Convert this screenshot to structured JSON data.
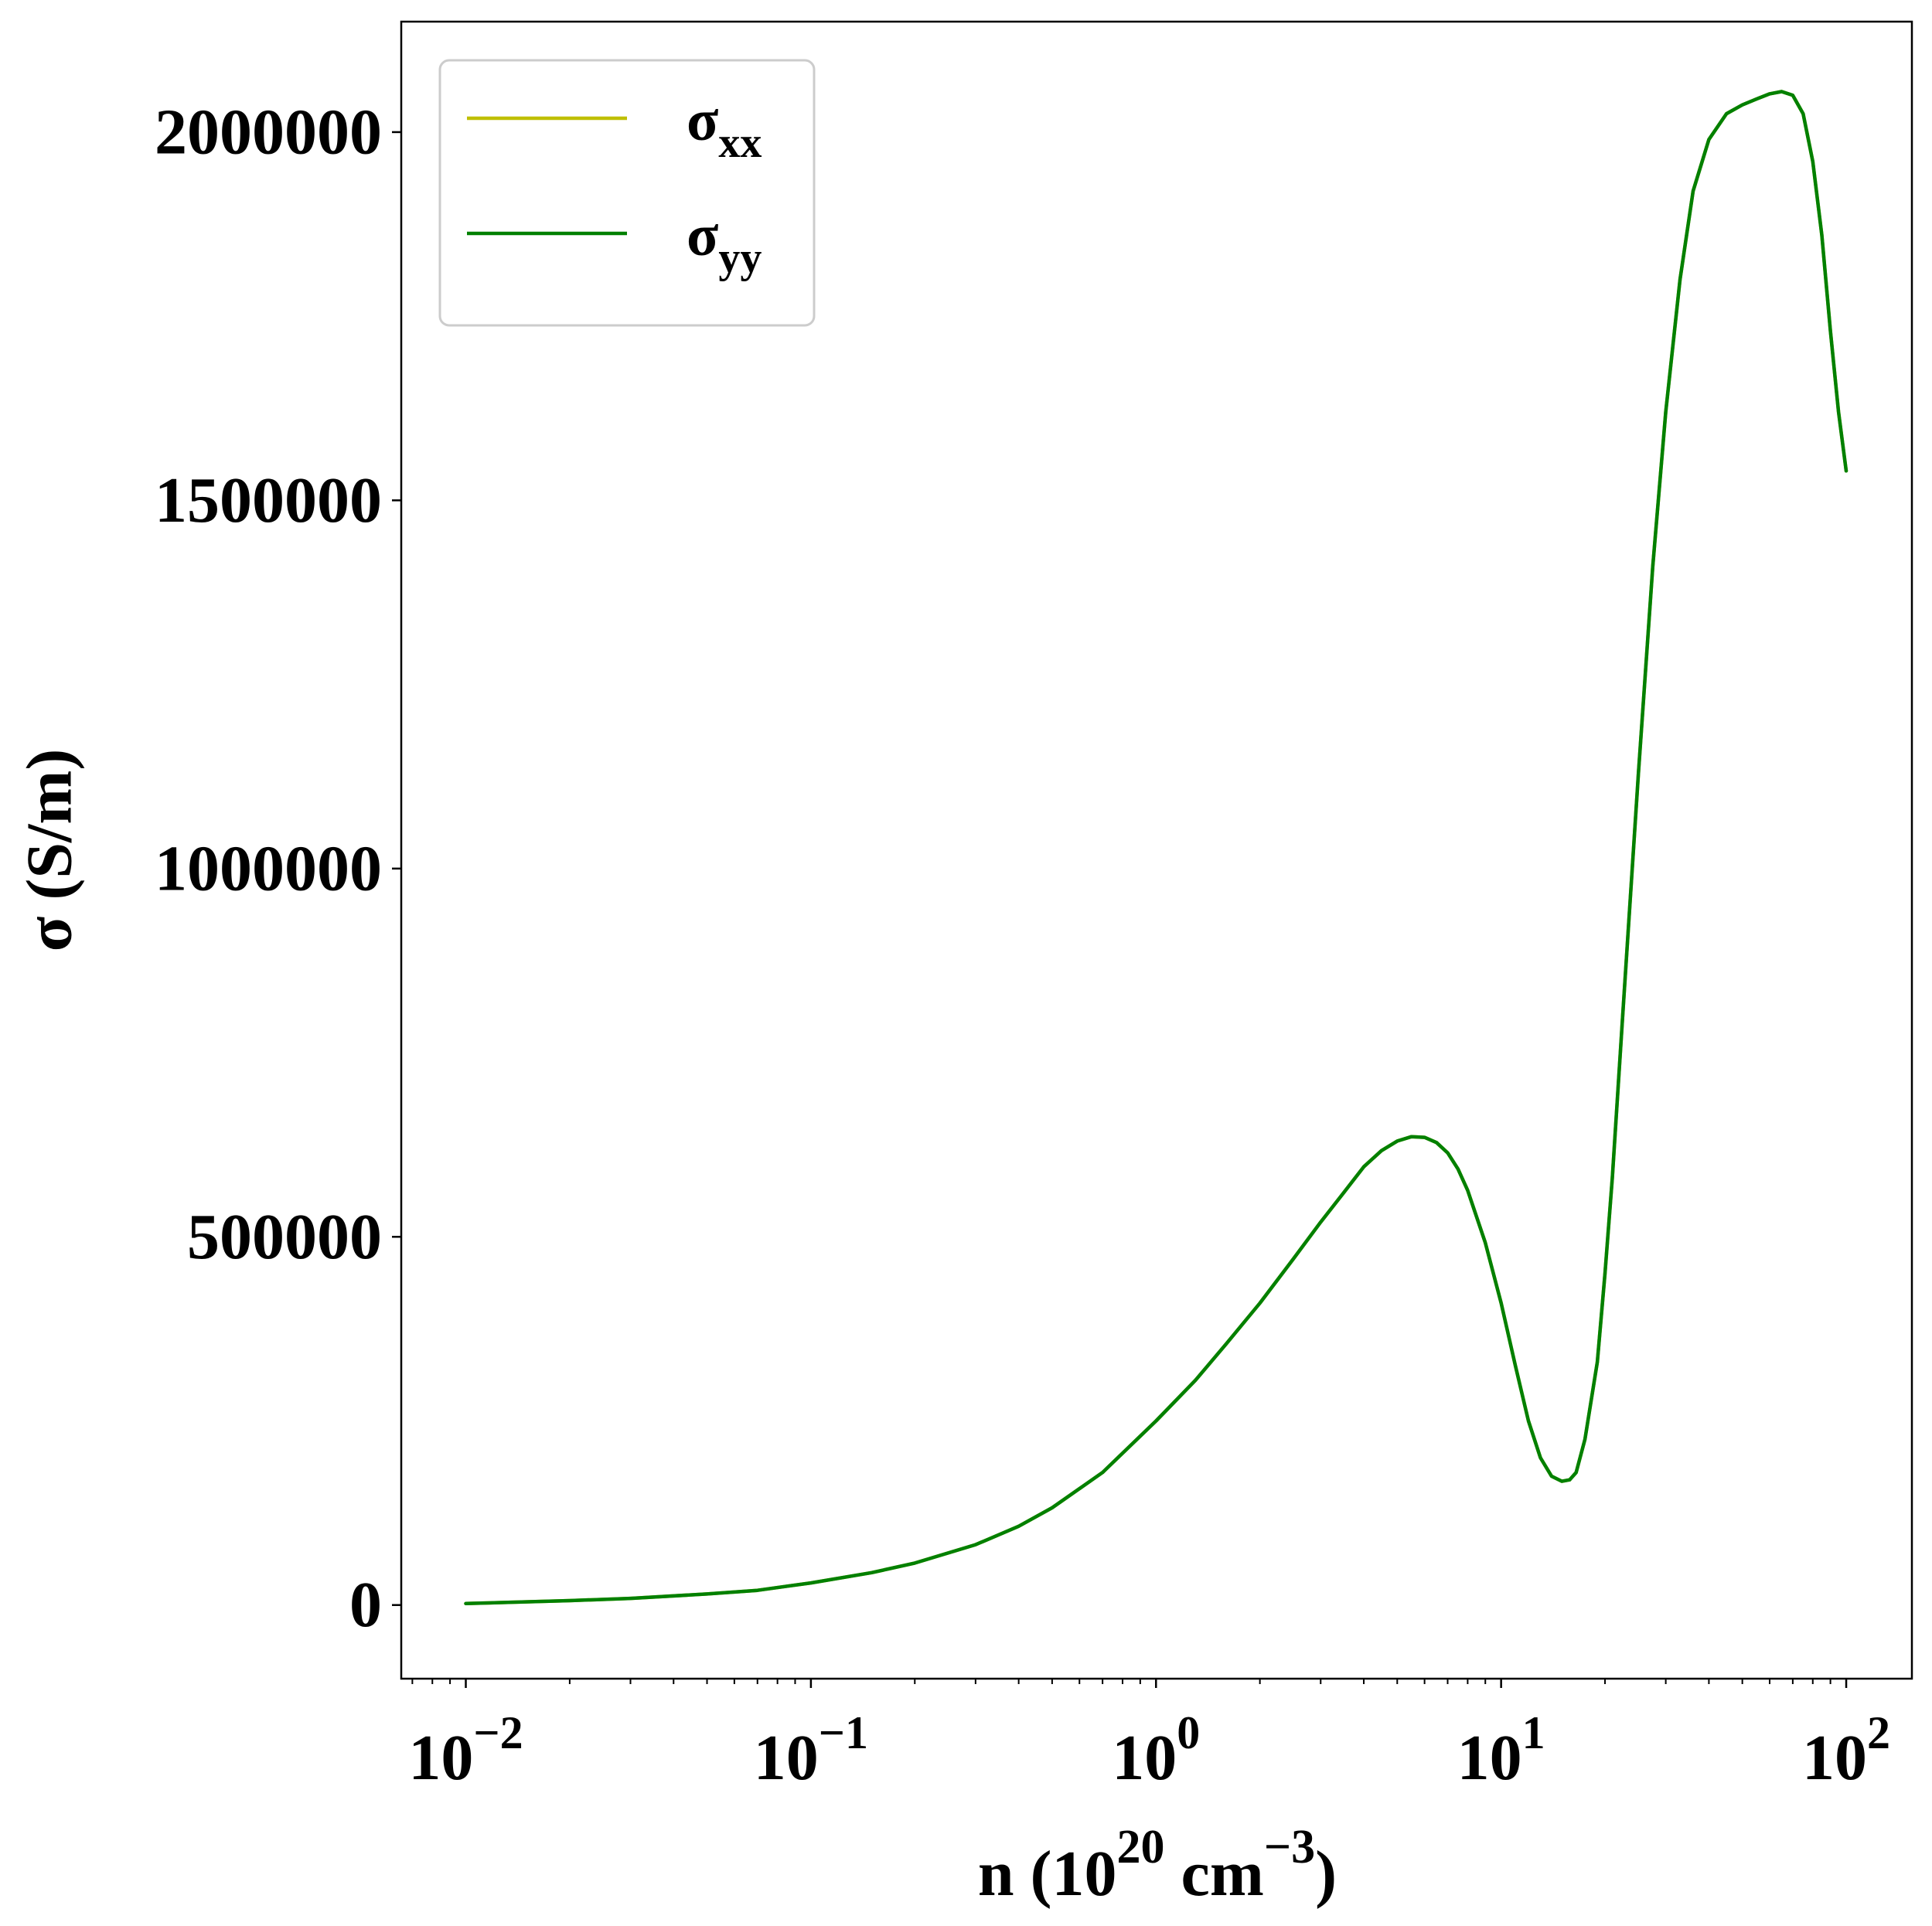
{
  "chart_data": {
    "type": "line",
    "title": "",
    "xlabel": "n (10^20 cm^-3)",
    "xlabel_parts": {
      "main": "n (10",
      "exp1": "20",
      "mid": " cm",
      "exp2": "−3",
      "end": ")"
    },
    "ylabel": "σ (S/m)",
    "xscale": "log",
    "xlim": [
      0.0065,
      155
    ],
    "ylim": [
      -100000,
      2150000
    ],
    "xticks": [
      {
        "value": 0.01,
        "base": "10",
        "exp": "−2"
      },
      {
        "value": 0.1,
        "base": "10",
        "exp": "−1"
      },
      {
        "value": 1,
        "base": "10",
        "exp": "0"
      },
      {
        "value": 10,
        "base": "10",
        "exp": "1"
      },
      {
        "value": 100,
        "base": "10",
        "exp": "2"
      }
    ],
    "yticks": [
      {
        "value": 0,
        "label": "0"
      },
      {
        "value": 500000,
        "label": "500000"
      },
      {
        "value": 1000000,
        "label": "1000000"
      },
      {
        "value": 1500000,
        "label": "1500000"
      },
      {
        "value": 2000000,
        "label": "2000000"
      }
    ],
    "grid": false,
    "legend_position": "top-left",
    "series": [
      {
        "name": "σxx",
        "name_base": "σ",
        "name_sub": "xx",
        "color": "#bfbf00",
        "x": [
          0.01,
          0.02,
          0.03,
          0.05,
          0.07,
          0.1,
          0.15,
          0.2,
          0.3,
          0.4,
          0.5,
          0.7,
          1.0,
          1.3,
          1.6,
          2.0,
          2.5,
          3.0,
          3.5,
          4.0,
          4.5,
          5.0,
          5.5,
          6.0,
          6.5,
          7.0,
          7.5,
          8.0,
          9.0,
          10,
          11,
          12,
          13,
          14,
          15,
          15.8,
          16.5,
          17.5,
          19,
          20,
          21,
          22.5,
          25,
          27.5,
          30,
          33,
          36,
          40,
          45,
          50,
          55,
          60,
          65,
          70,
          75,
          80,
          85,
          90,
          95,
          100
        ],
        "y": [
          2000,
          6000,
          9000,
          15000,
          20000,
          30000,
          44000,
          57000,
          82000,
          107000,
          132000,
          180000,
          250000,
          305000,
          355000,
          410000,
          470000,
          520000,
          560000,
          595000,
          617000,
          630000,
          636000,
          635000,
          628000,
          614000,
          592000,
          563000,
          492000,
          410000,
          325000,
          250000,
          200000,
          175000,
          168000,
          170000,
          180000,
          225000,
          330000,
          450000,
          580000,
          800000,
          1130000,
          1410000,
          1620000,
          1800000,
          1920000,
          1990000,
          2025000,
          2037000,
          2045000,
          2052000,
          2055000,
          2050000,
          2025000,
          1960000,
          1860000,
          1730000,
          1620000,
          1540000
        ]
      },
      {
        "name": "σyy",
        "name_base": "σ",
        "name_sub": "yy",
        "color": "#008000",
        "x": [
          0.01,
          0.02,
          0.03,
          0.05,
          0.07,
          0.1,
          0.15,
          0.2,
          0.3,
          0.4,
          0.5,
          0.7,
          1.0,
          1.3,
          1.6,
          2.0,
          2.5,
          3.0,
          3.5,
          4.0,
          4.5,
          5.0,
          5.5,
          6.0,
          6.5,
          7.0,
          7.5,
          8.0,
          9.0,
          10,
          11,
          12,
          13,
          14,
          15,
          15.8,
          16.5,
          17.5,
          19,
          20,
          21,
          22.5,
          25,
          27.5,
          30,
          33,
          36,
          40,
          45,
          50,
          55,
          60,
          65,
          70,
          75,
          80,
          85,
          90,
          95,
          100
        ],
        "y": [
          2000,
          6000,
          9000,
          15000,
          20000,
          30000,
          44000,
          57000,
          82000,
          107000,
          132000,
          180000,
          250000,
          305000,
          355000,
          410000,
          470000,
          520000,
          560000,
          595000,
          617000,
          630000,
          636000,
          635000,
          628000,
          614000,
          592000,
          563000,
          492000,
          410000,
          325000,
          250000,
          200000,
          175000,
          168000,
          170000,
          180000,
          225000,
          330000,
          450000,
          580000,
          800000,
          1130000,
          1410000,
          1620000,
          1800000,
          1920000,
          1990000,
          2025000,
          2037000,
          2045000,
          2052000,
          2055000,
          2050000,
          2025000,
          1960000,
          1860000,
          1730000,
          1620000,
          1540000
        ]
      }
    ]
  }
}
